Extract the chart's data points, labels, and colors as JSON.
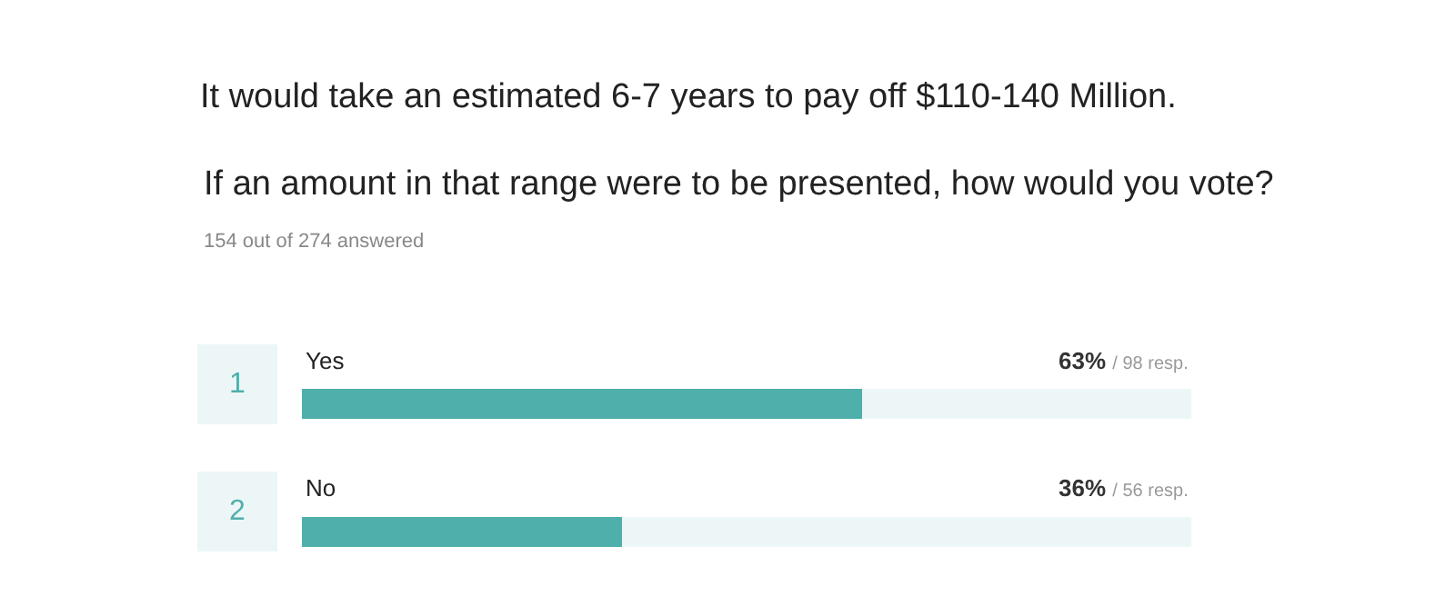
{
  "chart_data": {
    "type": "bar",
    "orientation": "horizontal",
    "title": "It would take an estimated 6-7 years to pay off $110-140 Million.",
    "subtitle": "If an amount in that range were to be presented, how would you vote?",
    "categories": [
      "Yes",
      "No"
    ],
    "values": [
      63,
      36
    ],
    "value_labels": [
      "63%",
      "36%"
    ],
    "color": "#4fafab",
    "xlim": [
      0,
      100
    ],
    "tick_labels": "y",
    "grid": false,
    "legend": false,
    "annotations": [
      "154 out of 274 answered",
      "1",
      "2",
      "/ 98 resp.",
      "/ 56 resp."
    ]
  }
}
